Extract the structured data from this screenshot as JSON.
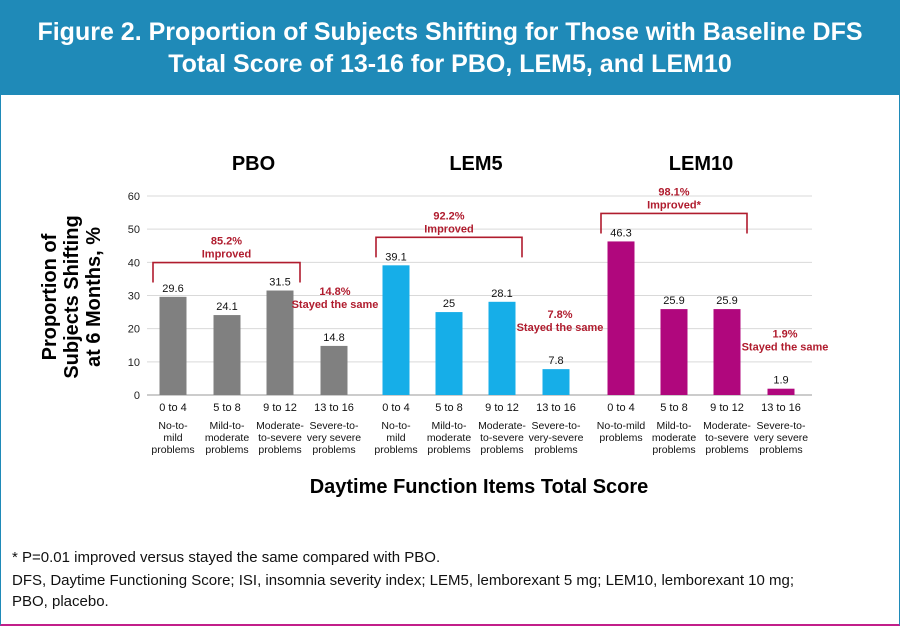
{
  "title_lines": [
    "Figure 2. Proportion of Subjects Shifting for Those with Baseline DFS",
    "Total Score of 13-16 for PBO, LEM5, and LEM10"
  ],
  "colors": {
    "header_bg": "#1f8ab8",
    "PBO": "#808080",
    "LEM5": "#16aee8",
    "LEM10": "#b0077d",
    "annotation": "#b01c2e",
    "bottom_rule": "#c21f8a"
  },
  "chart_data": {
    "type": "bar",
    "ylabel_lines": [
      "Proportion of",
      "Subjects Shifting",
      "at 6 Months, %"
    ],
    "xlabel": "Daytime Function Items Total Score",
    "ylim": [
      0,
      60
    ],
    "yticks": [
      0,
      10,
      20,
      30,
      40,
      50,
      60
    ],
    "grid": true,
    "groups": [
      {
        "name": "PBO",
        "categories": [
          {
            "range": "0 to 4",
            "desc": [
              "No-to-",
              "mild",
              "problems"
            ]
          },
          {
            "range": "5 to 8",
            "desc": [
              "Mild-to-",
              "moderate",
              "problems"
            ]
          },
          {
            "range": "9 to 12",
            "desc": [
              "Moderate-",
              "to-severe",
              "problems"
            ]
          },
          {
            "range": "13 to 16",
            "desc": [
              "Severe-to-",
              "very severe",
              "problems"
            ]
          }
        ],
        "values": [
          29.6,
          24.1,
          31.5,
          14.8
        ],
        "labels": [
          "29.6",
          "24.1",
          "31.5",
          "14.8"
        ],
        "improved_text": [
          "85.2%",
          "Improved"
        ],
        "same_text": [
          "14.8%",
          "Stayed the same"
        ]
      },
      {
        "name": "LEM5",
        "categories": [
          {
            "range": "0 to 4",
            "desc": [
              "No-to-",
              "mild",
              "problems"
            ]
          },
          {
            "range": "5 to 8",
            "desc": [
              "Mild-to-",
              "moderate",
              "problems"
            ]
          },
          {
            "range": "9 to 12",
            "desc": [
              "Moderate-",
              "to-severe",
              "problems"
            ]
          },
          {
            "range": "13 to 16",
            "desc": [
              "Severe-to-",
              "very-severe",
              "problems"
            ]
          }
        ],
        "values": [
          39.1,
          25,
          28.1,
          7.8
        ],
        "labels": [
          "39.1",
          "25",
          "28.1",
          "7.8"
        ],
        "improved_text": [
          "92.2%",
          "Improved"
        ],
        "same_text": [
          "7.8%",
          "Stayed the same"
        ]
      },
      {
        "name": "LEM10",
        "categories": [
          {
            "range": "0 to 4",
            "desc": [
              "No-to-mild",
              "problems"
            ]
          },
          {
            "range": "5 to 8",
            "desc": [
              "Mild-to-",
              "moderate",
              "problems"
            ]
          },
          {
            "range": "9 to 12",
            "desc": [
              "Moderate-",
              "to-severe",
              "problems"
            ]
          },
          {
            "range": "13 to 16",
            "desc": [
              "Severe-to-",
              "very severe",
              "problems"
            ]
          }
        ],
        "values": [
          46.3,
          25.9,
          25.9,
          1.9
        ],
        "labels": [
          "46.3",
          "25.9",
          "25.9",
          "1.9"
        ],
        "improved_text": [
          "98.1%",
          "Improved*"
        ],
        "same_text": [
          "1.9%",
          "Stayed the same"
        ]
      }
    ]
  },
  "footnotes": [
    "* P=0.01 improved versus stayed the same compared with PBO.",
    "DFS, Daytime Functioning Score; ISI, insomnia severity index; LEM5, lemborexant 5 mg; LEM10, lemborexant 10 mg;",
    "PBO, placebo."
  ]
}
